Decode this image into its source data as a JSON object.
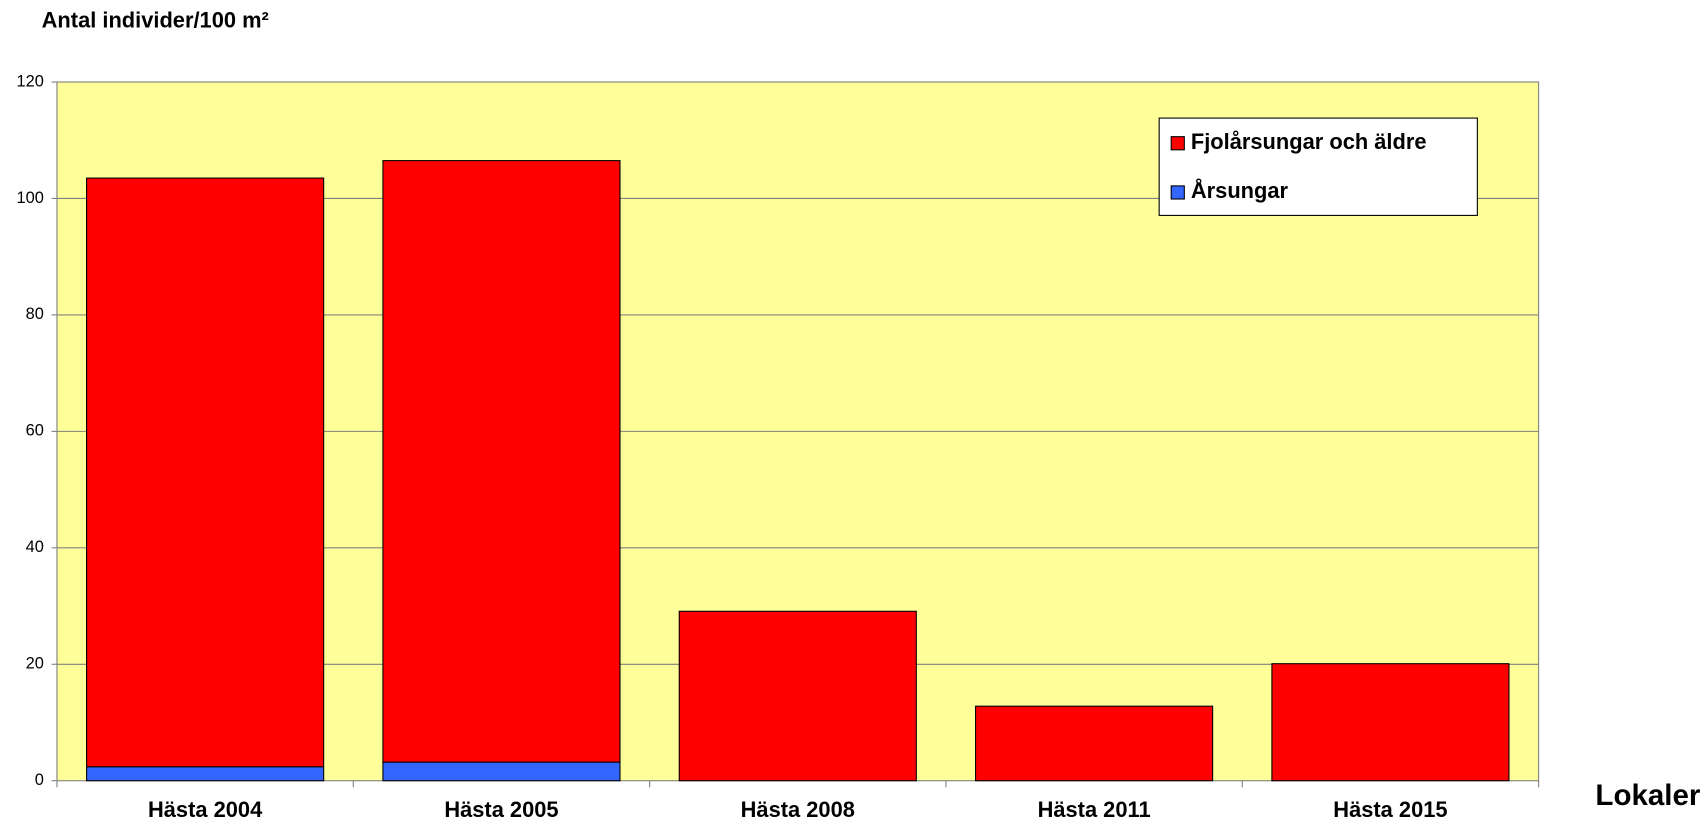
{
  "chart_data": {
    "type": "stacked_bar",
    "title": "Antal individer/100 m²",
    "x_label": "Lokaler",
    "categories": [
      "Hästa 2004",
      "Hästa 2005",
      "Hästa 2008",
      "Hästa 2011",
      "Hästa 2015"
    ],
    "series": [
      {
        "name": "Årsungar",
        "color": "#3366ff",
        "values": [
          2.4,
          3.2,
          0,
          0,
          0
        ]
      },
      {
        "name": "Fjolårsungar och äldre",
        "color": "#ff0000",
        "values": [
          101.1,
          103.3,
          29.1,
          12.8,
          20.1
        ]
      }
    ],
    "ylim": [
      0,
      120
    ],
    "yticks": [
      0,
      20,
      40,
      60,
      80,
      100,
      120
    ],
    "grid": true,
    "legend": "top-right"
  }
}
